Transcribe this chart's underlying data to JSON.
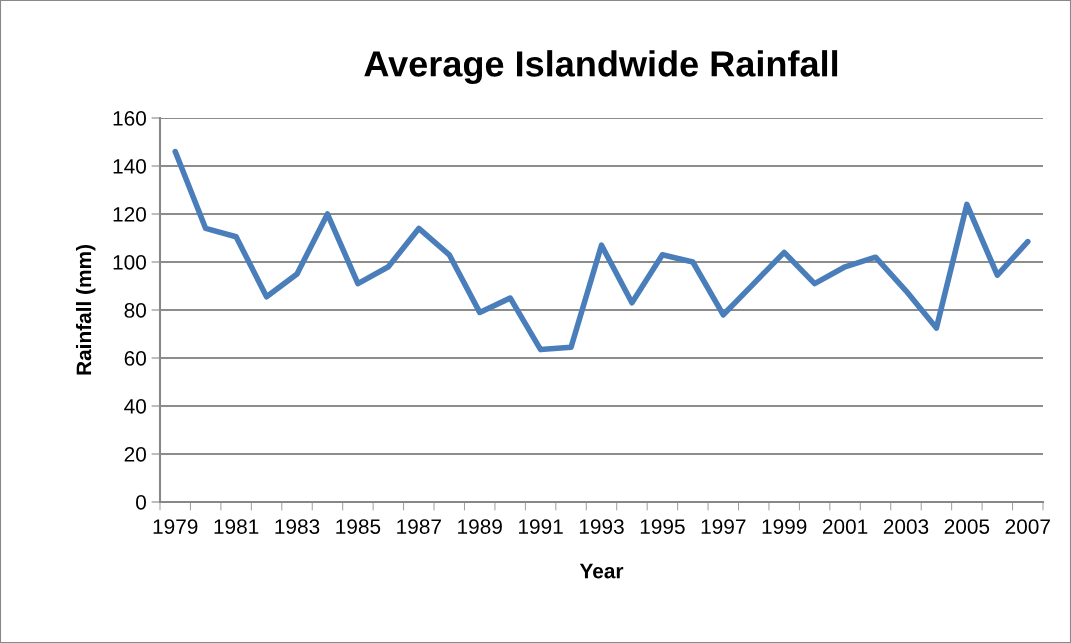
{
  "chart_data": {
    "type": "line",
    "title": "Average Islandwide Rainfall",
    "xlabel": "Year",
    "ylabel": "Rainfall (mm)",
    "categories": [
      "1979",
      null,
      "1981",
      null,
      "1983",
      null,
      "1985",
      null,
      "1987",
      null,
      "1989",
      null,
      "1991",
      null,
      "1993",
      null,
      "1995",
      null,
      "1997",
      null,
      "1999",
      null,
      "2001",
      null,
      "2003",
      null,
      "2005",
      null,
      "2007"
    ],
    "series": [
      {
        "color": "#4a7ebb",
        "values": [
          146,
          114,
          110.5,
          85.5,
          95,
          120,
          91,
          98,
          114,
          103,
          79,
          85,
          63.5,
          64.5,
          107,
          83,
          103,
          100,
          78,
          91,
          104,
          91,
          98,
          102,
          88,
          72.5,
          124,
          94.5,
          108.5
        ]
      }
    ],
    "ylim": [
      0,
      160
    ],
    "yticks": [
      0,
      20,
      40,
      60,
      80,
      100,
      120,
      140,
      160
    ],
    "grid": "y",
    "legend": false,
    "marker": "none",
    "line_style": "solid"
  }
}
